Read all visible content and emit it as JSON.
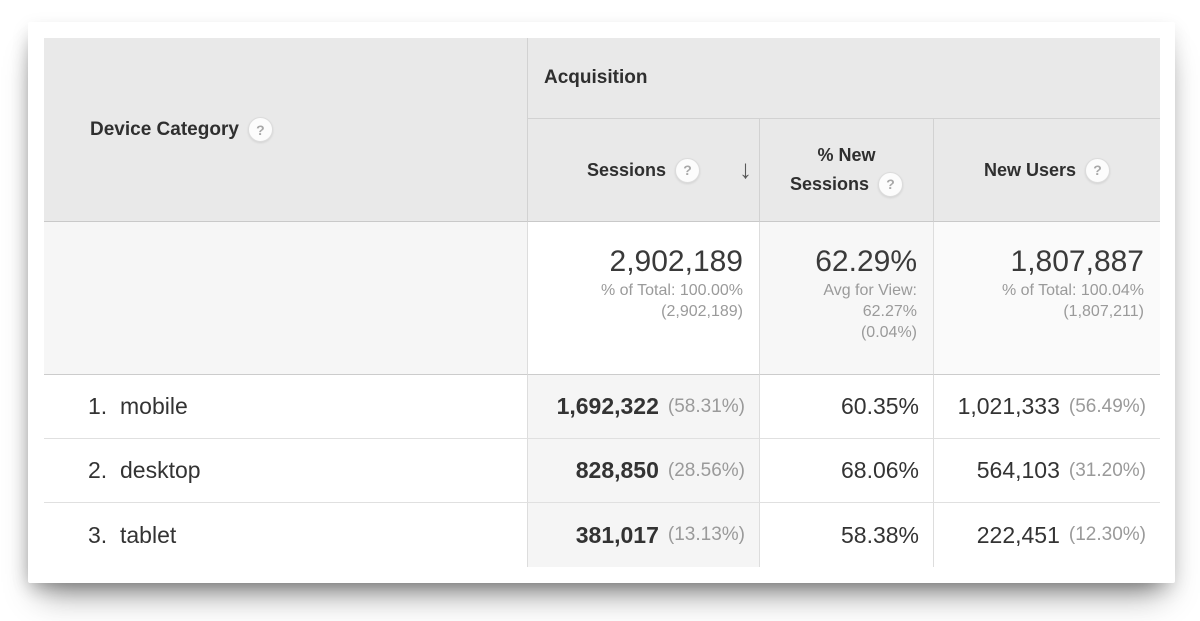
{
  "header": {
    "dimension_label": "Device Category",
    "group_label": "Acquisition",
    "help_glyph": "?",
    "sort_arrow": "↓",
    "columns": {
      "sessions": "Sessions",
      "new_sessions_line1": "% New",
      "new_sessions_line2": "Sessions",
      "new_users": "New Users"
    }
  },
  "summary": {
    "sessions": {
      "value": "2,902,189",
      "sub1": "% of Total: 100.00%",
      "sub2": "(2,902,189)"
    },
    "new_sessions": {
      "value": "62.29%",
      "sub1": "Avg for View:",
      "sub2": "62.27%",
      "sub3": "(0.04%)"
    },
    "new_users": {
      "value": "1,807,887",
      "sub1": "% of Total: 100.04%",
      "sub2": "(1,807,211)"
    }
  },
  "rows": [
    {
      "index": "1.",
      "name": "mobile",
      "sessions": "1,692,322",
      "sessions_pct": "(58.31%)",
      "pct_new_sessions": "60.35%",
      "new_users": "1,021,333",
      "new_users_pct": "(56.49%)"
    },
    {
      "index": "2.",
      "name": "desktop",
      "sessions": "828,850",
      "sessions_pct": "(28.56%)",
      "pct_new_sessions": "68.06%",
      "new_users": "564,103",
      "new_users_pct": "(31.20%)"
    },
    {
      "index": "3.",
      "name": "tablet",
      "sessions": "381,017",
      "sessions_pct": "(13.13%)",
      "pct_new_sessions": "58.38%",
      "new_users": "222,451",
      "new_users_pct": "(12.30%)"
    }
  ],
  "colors": {
    "header_bg": "#e9e9e9",
    "sorted_column_bg": "#f5f5f5",
    "summary_dimension_bg": "#f6f6f6",
    "border_strong": "#cccccc",
    "border_light": "#dddddd",
    "text_primary": "#333333",
    "text_secondary": "#9a9a9a",
    "sort_arrow": "#595959"
  }
}
